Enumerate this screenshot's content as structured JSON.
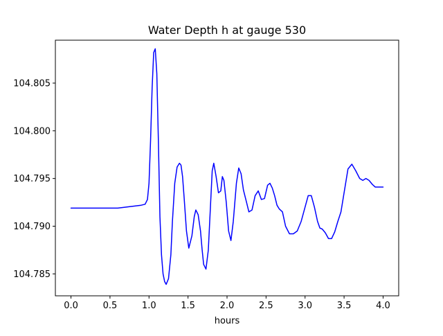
{
  "chart_data": {
    "type": "line",
    "title": "Water Depth h at gauge 530",
    "xlabel": "hours",
    "ylabel": "",
    "xlim": [
      -0.2,
      4.2
    ],
    "ylim": [
      104.7827,
      104.8095
    ],
    "xticks": [
      0.0,
      0.5,
      1.0,
      1.5,
      2.0,
      2.5,
      3.0,
      3.5,
      4.0
    ],
    "xtick_labels": [
      "0.0",
      "0.5",
      "1.0",
      "1.5",
      "2.0",
      "2.5",
      "3.0",
      "3.5",
      "4.0"
    ],
    "yticks": [
      104.785,
      104.79,
      104.795,
      104.8,
      104.805
    ],
    "ytick_labels": [
      "104.785",
      "104.790",
      "104.795",
      "104.800",
      "104.805"
    ],
    "grid": false,
    "series": [
      {
        "color": "#0000ff",
        "x": [
          0.0,
          0.3,
          0.6,
          0.7,
          0.8,
          0.9,
          0.95,
          0.98,
          1.0,
          1.02,
          1.04,
          1.06,
          1.08,
          1.1,
          1.12,
          1.14,
          1.16,
          1.18,
          1.2,
          1.22,
          1.25,
          1.28,
          1.3,
          1.33,
          1.36,
          1.39,
          1.41,
          1.43,
          1.45,
          1.48,
          1.51,
          1.55,
          1.58,
          1.6,
          1.63,
          1.66,
          1.68,
          1.7,
          1.73,
          1.76,
          1.79,
          1.81,
          1.83,
          1.86,
          1.89,
          1.92,
          1.94,
          1.96,
          1.99,
          2.02,
          2.05,
          2.08,
          2.12,
          2.15,
          2.18,
          2.21,
          2.25,
          2.28,
          2.32,
          2.36,
          2.4,
          2.44,
          2.48,
          2.52,
          2.55,
          2.58,
          2.61,
          2.64,
          2.67,
          2.71,
          2.75,
          2.8,
          2.85,
          2.9,
          2.95,
          3.0,
          3.04,
          3.08,
          3.12,
          3.16,
          3.19,
          3.22,
          3.26,
          3.3,
          3.34,
          3.38,
          3.42,
          3.46,
          3.5,
          3.55,
          3.6,
          3.65,
          3.7,
          3.74,
          3.78,
          3.82,
          3.86,
          3.9,
          3.94,
          3.97,
          4.0
        ],
        "values": [
          104.7919,
          104.7919,
          104.7919,
          104.792,
          104.7921,
          104.7922,
          104.7923,
          104.7928,
          104.7945,
          104.799,
          104.8045,
          104.8082,
          104.8086,
          104.806,
          104.799,
          104.791,
          104.787,
          104.785,
          104.7842,
          104.7839,
          104.7845,
          104.787,
          104.7905,
          104.7945,
          104.7962,
          104.7966,
          104.7964,
          104.7952,
          104.793,
          104.7895,
          104.7877,
          104.789,
          104.791,
          104.7917,
          104.7912,
          104.7895,
          104.7876,
          104.786,
          104.7855,
          104.7875,
          104.7925,
          104.7958,
          104.7966,
          104.7952,
          104.7935,
          104.7937,
          104.7952,
          104.7948,
          104.7925,
          104.7895,
          104.7885,
          104.7905,
          104.7945,
          104.7961,
          104.7955,
          104.7938,
          104.7925,
          104.7915,
          104.7917,
          104.7932,
          104.7937,
          104.7928,
          104.7929,
          104.7943,
          104.7945,
          104.794,
          104.7932,
          104.7922,
          104.7918,
          104.7915,
          104.79,
          104.7892,
          104.7892,
          104.7895,
          104.7905,
          104.792,
          104.7932,
          104.7932,
          104.792,
          104.7905,
          104.7898,
          104.7897,
          104.7893,
          104.7887,
          104.7887,
          104.7894,
          104.7905,
          104.7915,
          104.7935,
          104.796,
          104.7965,
          104.7958,
          104.795,
          104.7948,
          104.795,
          104.7948,
          104.7944,
          104.7941,
          104.7941,
          104.7941,
          104.7941
        ]
      }
    ]
  }
}
